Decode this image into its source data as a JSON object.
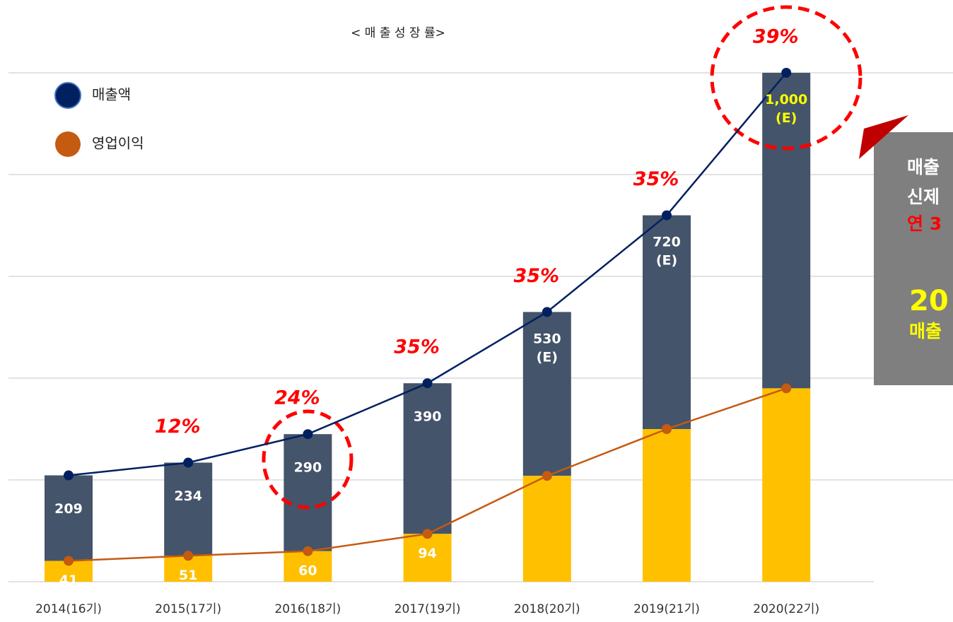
{
  "chart_data": {
    "type": "bar-line",
    "title": "< 매 출 성 장 률>",
    "categories": [
      "2014(16기)",
      "2015(17기)",
      "2016(18기)",
      "2017(19기)",
      "2018(20기)",
      "2019(21기)",
      "2020(22기)"
    ],
    "series": [
      {
        "name": "매출액",
        "color": "#002060",
        "bar_color": "#44546a",
        "values": [
          209,
          234,
          290,
          390,
          530,
          720,
          1000
        ],
        "value_labels": [
          "209",
          "234",
          "290",
          "390",
          "530 (E)",
          "720 (E)",
          "1,000 (E)"
        ],
        "label_color": "#ffffff"
      },
      {
        "name": "영업이익",
        "color": "#c55a11",
        "bar_color": "#ffc000",
        "values": [
          41,
          51,
          60,
          94,
          208,
          300,
          380
        ],
        "value_labels": [
          "41",
          "51",
          "60",
          "94",
          null,
          null,
          null
        ],
        "label_color": "#ffffff"
      }
    ],
    "growth": {
      "values": [
        null,
        12,
        24,
        35,
        35,
        35,
        39
      ],
      "value_labels": [
        null,
        "12%",
        "24%",
        "35%",
        "35%",
        "35%",
        "39%"
      ],
      "color": "#ff0000"
    },
    "ylim": [
      0,
      1000
    ],
    "yticks": [
      0,
      200,
      400,
      600,
      800,
      1000
    ],
    "grid": true,
    "side_note": [
      "매출",
      "신제",
      "연 3",
      "20",
      "매출"
    ]
  }
}
